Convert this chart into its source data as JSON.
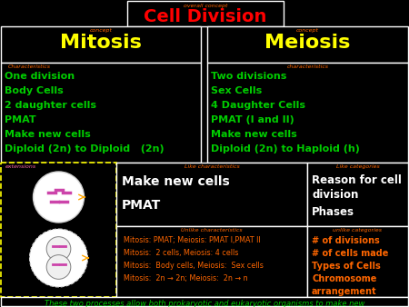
{
  "bg_color": "#000000",
  "title_label": "overall concept",
  "title": "Cell Division",
  "title_color": "#ff0000",
  "title_label_color": "#ff6600",
  "concept_color": "#ffff00",
  "label_color": "#ff6600",
  "mitosis_label": "concept",
  "mitosis_title": "Mitosis",
  "meiosis_label": "concept",
  "meiosis_title": "Meiosis",
  "char_label": "Characteristics",
  "mitosis_chars": [
    "One division",
    "Body Cells",
    "2 daughter cells",
    "PMAT",
    "Make new cells",
    "Diploid (2n) to Diploid   (2n)"
  ],
  "meiosis_chars_label": "characteristics",
  "meiosis_chars": [
    "Two divisions",
    "Sex Cells",
    "4 Daughter Cells",
    "PMAT (I and II)",
    "Make new cells",
    "Diploid (2n) to Haploid (h)"
  ],
  "char_color": "#00cc00",
  "extensions_label": "extensions",
  "like_char_label": "Like characteristics",
  "like_chars_line1": "Make new cells",
  "like_chars_line2": "PMAT",
  "like_char_color": "#ffffff",
  "unlike_char_label": "Unlike characteristics",
  "unlike_chars": [
    "Mitosis: PMAT; Meiosis: PMAT I,PMAT II",
    "Mitosis:  2 cells, Meiosis: 4 cells",
    "Mitosis:  Body cells, Meiosis:  Sex cells",
    "Mitosis:  2n → 2n; Meiosis:  2n → n"
  ],
  "unlike_color": "#ff6600",
  "like_cat_label": "Like categories",
  "like_cats_line1": "Reason for cell",
  "like_cats_line2": "division",
  "like_cats_line3": "Phases",
  "like_cat_color": "#ffffff",
  "unlike_cat_label": "unlike categories",
  "unlike_cats": [
    "# of divisions",
    "# of cells made",
    "Types of Cells",
    "Chromosome",
    "arrangement"
  ],
  "unlike_cat_color": "#ff6600",
  "footer": "These two processes allow both prokaryotic and eukaryotic organisms to make new\ncells to replace old, lost, or damaged cells.",
  "footer_color": "#00cc00",
  "box_border_color": "#ffffff",
  "dashed_border_color": "#ffff00",
  "ext_label_color": "#ff66aa"
}
